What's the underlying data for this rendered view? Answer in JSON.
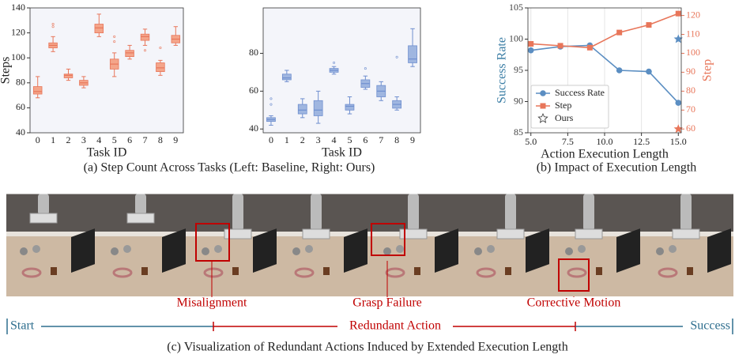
{
  "chart_data": [
    {
      "type": "box",
      "xlabel": "Task ID",
      "ylabel": "Steps",
      "color": "#f4a58a",
      "edge": "#e8765a",
      "categories": [
        "0",
        "1",
        "2",
        "3",
        "4",
        "5",
        "6",
        "7",
        "8",
        "9"
      ],
      "stats": [
        [
          68,
          71,
          73,
          77,
          85
        ],
        [
          105,
          108,
          110,
          112,
          117
        ],
        [
          82,
          84,
          86,
          87,
          91
        ],
        [
          76,
          78,
          80,
          82,
          85
        ],
        [
          117,
          120,
          124,
          127,
          135
        ],
        [
          85,
          91,
          95,
          99,
          104
        ],
        [
          99,
          101,
          104,
          106,
          110
        ],
        [
          110,
          114,
          117,
          119,
          123
        ],
        [
          86,
          89,
          92,
          96,
          98
        ],
        [
          110,
          112,
          115,
          118,
          125
        ]
      ],
      "fliers": [
        [],
        [
          125,
          127
        ],
        [],
        [],
        [],
        [
          113,
          117
        ],
        [],
        [
          106
        ],
        [
          108
        ],
        []
      ],
      "ylim": [
        40,
        140
      ],
      "yticks": [
        40,
        60,
        80,
        100,
        120,
        140
      ]
    },
    {
      "type": "box",
      "xlabel": "Task ID",
      "color": "#9fb6e0",
      "edge": "#6f8fcf",
      "categories": [
        "0",
        "1",
        "2",
        "3",
        "4",
        "5",
        "6",
        "7",
        "8",
        "9"
      ],
      "stats": [
        [
          42,
          44,
          45,
          46,
          47
        ],
        [
          65,
          66,
          67,
          69,
          71
        ],
        [
          46,
          48,
          50,
          53,
          56
        ],
        [
          43,
          47,
          50,
          55,
          60
        ],
        [
          69,
          70,
          71,
          72,
          73
        ],
        [
          48,
          50,
          52,
          53,
          57
        ],
        [
          61,
          62,
          64,
          66,
          68
        ],
        [
          55,
          57,
          60,
          63,
          65
        ],
        [
          50,
          51,
          53,
          55,
          57
        ],
        [
          73,
          75,
          77,
          84,
          93
        ]
      ],
      "fliers": [
        [
          53,
          56
        ],
        [],
        [],
        [],
        [
          75
        ],
        [],
        [
          72
        ],
        [],
        [
          78
        ],
        []
      ],
      "ylim": [
        38,
        104
      ],
      "yticks": [
        40,
        60,
        80
      ]
    },
    {
      "type": "line",
      "xlabel": "Action Execution Length",
      "ylabel": "Success Rate",
      "y2label": "Step",
      "grid": true,
      "legend": "lower-left",
      "x": [
        5,
        7,
        9,
        11,
        13,
        15
      ],
      "series": [
        {
          "name": "Success Rate",
          "color": "#5b8ec2",
          "marker": "circle",
          "values": [
            98.2,
            98.8,
            99.0,
            95.0,
            94.8,
            89.8
          ]
        },
        {
          "name": "Step",
          "color": "#e8765a",
          "marker": "square",
          "axis": "y2",
          "values": [
            105,
            104,
            103,
            111,
            115,
            121
          ]
        }
      ],
      "ours": {
        "name": "Ours",
        "points": [
          {
            "x": 15,
            "y": 100,
            "color": "#5b8ec2"
          },
          {
            "x": 15,
            "y": 60,
            "axis": "y2",
            "color": "#e8765a"
          }
        ]
      },
      "xlim": [
        4.8,
        15.2
      ],
      "xticks": [
        {
          "value": 5,
          "label": "5.0"
        },
        {
          "value": 7.5,
          "label": "7.5"
        },
        {
          "value": 10,
          "label": "10.0"
        },
        {
          "value": 12.5,
          "label": "12.5"
        },
        {
          "value": 15,
          "label": "15.0"
        }
      ],
      "ylim": [
        85,
        105
      ],
      "yticks": [
        85,
        90,
        95,
        100,
        105
      ],
      "y2lim": [
        58,
        124
      ],
      "y2ticks": [
        60,
        70,
        80,
        90,
        100,
        110,
        120
      ]
    }
  ],
  "figure": {
    "captions": {
      "a": "(a) Step Count Across Tasks (Left: Baseline, Right: Ours)",
      "b": "(b) Impact of Execution Length",
      "c": "(c)  Visualization of Redundant Actions Induced by Extended Execution Length"
    },
    "annotations": [
      "Misalignment",
      "Grasp Failure",
      "Corrective Motion"
    ],
    "timeline": {
      "start": "Start",
      "middle": "Redundant Action",
      "end": "Success"
    }
  }
}
